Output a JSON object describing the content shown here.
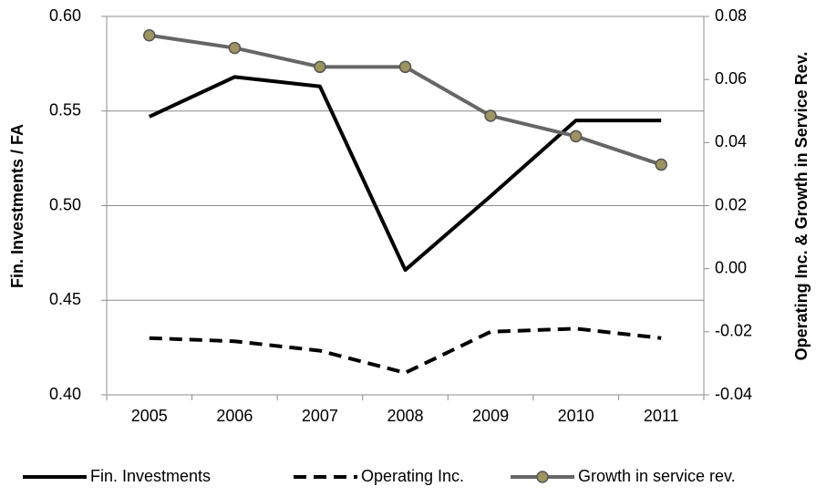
{
  "chart_data": {
    "type": "line",
    "y_label": "Fin. Investments / FA",
    "y2_label": "Operating Inc. & Growth in Service Rev.",
    "categories": [
      "2005",
      "2006",
      "2007",
      "2008",
      "2009",
      "2010",
      "2011"
    ],
    "series": [
      {
        "name": "Fin. Investments",
        "color": "#000000",
        "style": "solid",
        "marker": false,
        "values": [
          0.547,
          0.568,
          0.563,
          0.466,
          0.505,
          0.545,
          0.545
        ]
      },
      {
        "name": "Operating Inc.",
        "color": "#000000",
        "style": "dashed",
        "marker": false,
        "axis": "y2",
        "values": [
          -0.022,
          -0.023,
          -0.026,
          -0.033,
          -0.02,
          -0.019,
          -0.022
        ]
      },
      {
        "name": "Growth in service rev.",
        "color": "#666666",
        "style": "solid",
        "marker": true,
        "marker_color": "#9c9461",
        "axis": "y2",
        "values": [
          0.074,
          0.07,
          0.064,
          0.064,
          0.0485,
          0.042,
          0.033
        ]
      }
    ],
    "ylim": [
      0.4,
      0.6
    ],
    "yticks": [
      {
        "value": 0.4,
        "label": "0.40"
      },
      0.45,
      {
        "value": 0.5,
        "label": "0.50"
      },
      0.55,
      {
        "value": 0.6,
        "label": "0.60"
      }
    ],
    "y2lim": [
      -0.04,
      0.08
    ],
    "y2ticks": [
      {
        "value": -0.04,
        "label": "-0.04"
      },
      {
        "value": -0.02,
        "label": "-0.02"
      },
      {
        "value": 0,
        "label": "0.00"
      },
      0.02,
      0.04,
      0.06,
      0.08
    ],
    "grid": true,
    "legend": "bottom"
  }
}
